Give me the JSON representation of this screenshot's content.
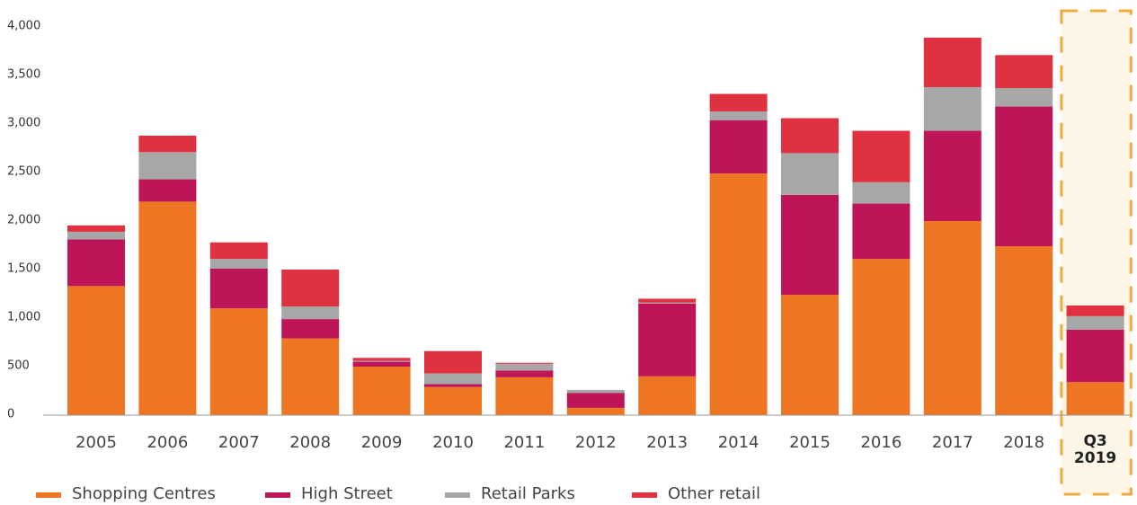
{
  "chart_data": {
    "type": "stacked_bar",
    "categories": [
      "2005",
      "2006",
      "2007",
      "2008",
      "2009",
      "2010",
      "2011",
      "2012",
      "2013",
      "2014",
      "2015",
      "2016",
      "2017",
      "2018",
      "Q3\n2019"
    ],
    "series": [
      {
        "name": "Shopping Centres",
        "color": "#ee7623",
        "values": [
          1330,
          2200,
          1100,
          790,
          500,
          290,
          390,
          75,
          400,
          2490,
          1240,
          1610,
          2000,
          1740,
          340
        ]
      },
      {
        "name": "High Street",
        "color": "#bd1558",
        "values": [
          480,
          230,
          410,
          200,
          50,
          30,
          70,
          155,
          750,
          550,
          1030,
          570,
          930,
          1440,
          540
        ]
      },
      {
        "name": "Retail Parks",
        "color": "#a7a7a7",
        "values": [
          80,
          280,
          100,
          130,
          10,
          110,
          70,
          30,
          10,
          90,
          430,
          220,
          450,
          190,
          140
        ]
      },
      {
        "name": "Other retail",
        "color": "#e03141",
        "values": [
          65,
          170,
          170,
          380,
          30,
          230,
          10,
          0,
          40,
          180,
          360,
          530,
          510,
          340,
          110
        ]
      }
    ],
    "ylim": [
      0,
      4000
    ],
    "yticks": [
      0,
      {
        "value": 500,
        "label": "500"
      },
      {
        "value": 1000,
        "label": "1,000"
      },
      {
        "value": 1500,
        "label": "1,500"
      },
      {
        "value": 2000,
        "label": "2,000"
      },
      {
        "value": 2500,
        "label": "2,500"
      },
      {
        "value": 3000,
        "label": "3,000"
      },
      {
        "value": 3500,
        "label": "3,500"
      },
      {
        "value": 4000,
        "label": "4,000"
      }
    ],
    "grid": false,
    "legend": "bottom"
  }
}
